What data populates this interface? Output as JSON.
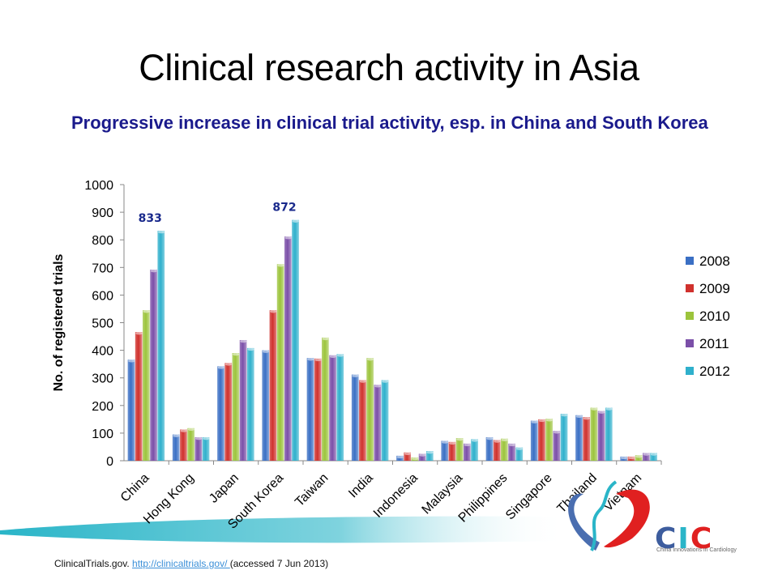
{
  "slide": {
    "title": "Clinical research activity in Asia",
    "subtitle": "Progressive increase in clinical trial activity, esp. in China and South Korea",
    "footer_source": "ClinicalTrials.gov. ",
    "footer_link": "http://clinicaltrials.gov/ ",
    "footer_accessed": "(accessed 7 Jun 2013)",
    "logo_text": {
      "c1": "C",
      "i": "I",
      "c2": "C"
    },
    "logo_tagline": "China Innovations in Cardiology"
  },
  "chart_data": {
    "type": "bar",
    "title": "",
    "xlabel": "",
    "ylabel": "No. of registered trials",
    "ylim": [
      0,
      1000
    ],
    "yticks": [
      0,
      100,
      200,
      300,
      400,
      500,
      600,
      700,
      800,
      900,
      1000
    ],
    "grid": false,
    "legend_position": "right",
    "categories": [
      "China",
      "Hong Kong",
      "Japan",
      "South Korea",
      "Taiwan",
      "India",
      "Indonesia",
      "Malaysia",
      "Philippines",
      "Singapore",
      "Thailand",
      "Vietnam"
    ],
    "series": [
      {
        "name": "2008",
        "color": "#3a6fc4",
        "values": [
          366,
          95,
          342,
          400,
          372,
          312,
          18,
          72,
          85,
          145,
          165,
          15
        ]
      },
      {
        "name": "2009",
        "color": "#d0312d",
        "values": [
          466,
          113,
          354,
          545,
          370,
          292,
          30,
          68,
          75,
          150,
          158,
          15
        ]
      },
      {
        "name": "2010",
        "color": "#9cc43c",
        "values": [
          545,
          118,
          390,
          712,
          446,
          372,
          12,
          82,
          80,
          152,
          192,
          20
        ]
      },
      {
        "name": "2011",
        "color": "#7b4fa8",
        "values": [
          692,
          85,
          437,
          812,
          382,
          275,
          25,
          62,
          62,
          108,
          180,
          28
        ]
      },
      {
        "name": "2012",
        "color": "#2fb0cc",
        "values": [
          833,
          85,
          408,
          872,
          386,
          292,
          35,
          78,
          48,
          170,
          192,
          28
        ]
      }
    ],
    "annotations": [
      {
        "category": "China",
        "series": "2012",
        "text": "833"
      },
      {
        "category": "South Korea",
        "series": "2012",
        "text": "872"
      }
    ]
  }
}
